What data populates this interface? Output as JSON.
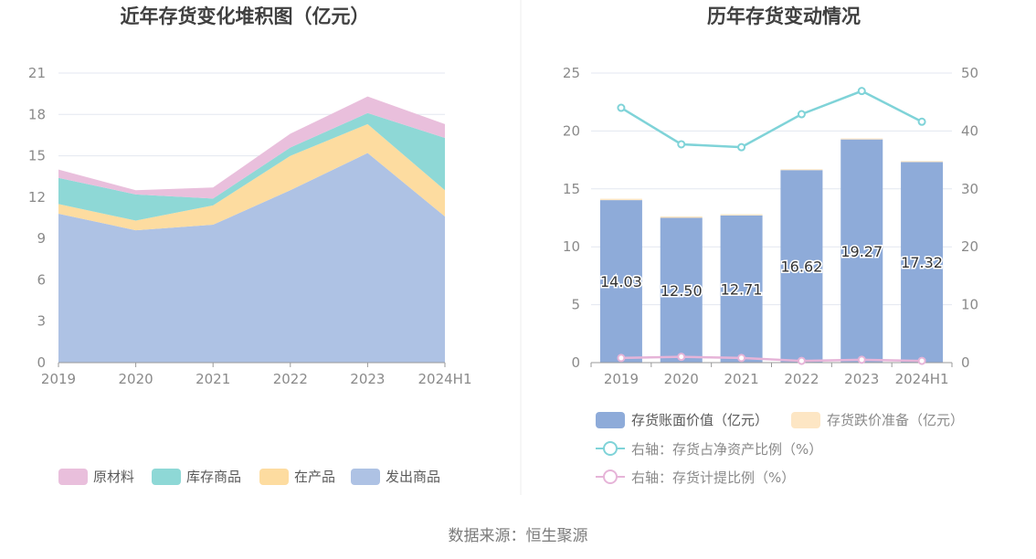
{
  "source_text": "数据来源：恒生聚源",
  "colors": {
    "raw_materials": "#e9bfdc",
    "inventory_goods": "#8ed8d6",
    "work_in_progress": "#fddca0",
    "shipped_goods": "#aec2e4",
    "book_value": "#8eabd9",
    "impairment": "#fde6c4",
    "ratio_net_assets": "#7fd3d8",
    "provision_ratio": "#e6b4d8",
    "grid": "#e3e7f0",
    "axis": "#9a9a9a"
  },
  "chart_data": [
    {
      "type": "area",
      "stacked": true,
      "title": "近年存货变化堆积图（亿元）",
      "categories": [
        "2019",
        "2020",
        "2021",
        "2022",
        "2023",
        "2024H1"
      ],
      "ylim": [
        0,
        21
      ],
      "yticks": [
        "0",
        "3",
        "6",
        "9",
        "12",
        "15",
        "18",
        "21"
      ],
      "grid": true,
      "legend_position": "bottom",
      "series": [
        {
          "name": "发出商品",
          "key": "shipped_goods",
          "values": [
            10.8,
            9.6,
            10.0,
            12.5,
            15.2,
            10.6
          ]
        },
        {
          "name": "在产品",
          "key": "work_in_progress",
          "values": [
            0.7,
            0.7,
            1.4,
            2.5,
            2.1,
            1.9
          ]
        },
        {
          "name": "库存商品",
          "key": "inventory_goods",
          "values": [
            1.9,
            1.9,
            0.5,
            0.6,
            0.8,
            3.8
          ]
        },
        {
          "name": "原材料",
          "key": "raw_materials",
          "values": [
            0.6,
            0.3,
            0.8,
            1.0,
            1.2,
            1.0
          ]
        }
      ],
      "legend_order": [
        "原材料",
        "库存商品",
        "在产品",
        "发出商品"
      ]
    },
    {
      "type": "bar",
      "title": "历年存货变动情况",
      "categories": [
        "2019",
        "2020",
        "2021",
        "2022",
        "2023",
        "2024H1"
      ],
      "ylim": [
        0,
        25
      ],
      "yticks": [
        "0",
        "5",
        "10",
        "15",
        "20",
        "25"
      ],
      "y2lim": [
        0,
        50
      ],
      "y2ticks": [
        "0",
        "10",
        "20",
        "30",
        "40",
        "50"
      ],
      "grid": true,
      "legend_position": "bottom",
      "series": [
        {
          "name": "存货账面价值（亿元）",
          "key": "book_value",
          "kind": "bar",
          "values": [
            14.03,
            12.5,
            12.71,
            16.62,
            19.27,
            17.32
          ],
          "labels": [
            "14.03",
            "12.50",
            "12.71",
            "16.62",
            "19.27",
            "17.32"
          ]
        },
        {
          "name": "存货跌价准备（亿元）",
          "key": "impairment",
          "kind": "bar-stack",
          "values": [
            0.12,
            0.12,
            0.1,
            0.08,
            0.09,
            0.08
          ]
        },
        {
          "name": "右轴：存货占净资产比例（%）",
          "key": "ratio_net_assets",
          "kind": "line",
          "axis": "right",
          "values": [
            44.0,
            37.7,
            37.2,
            42.9,
            46.9,
            41.6
          ]
        },
        {
          "name": "右轴：存货计提比例（%）",
          "key": "provision_ratio",
          "kind": "line",
          "axis": "right",
          "values": [
            0.8,
            1.0,
            0.8,
            0.3,
            0.5,
            0.3
          ]
        }
      ]
    }
  ]
}
